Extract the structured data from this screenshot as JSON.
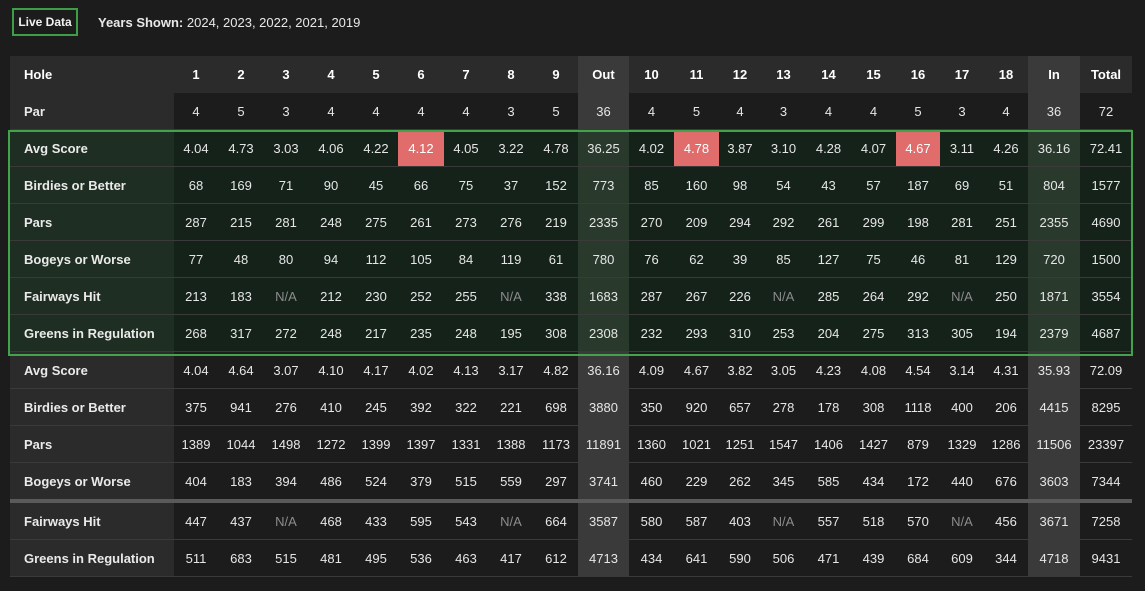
{
  "header": {
    "live_button": "Live Data",
    "years_label": "Years Shown:",
    "years_value": "2024, 2023, 2022, 2021, 2019"
  },
  "colors": {
    "live_outline": "#43a34b",
    "highlight": "#e06c6c"
  },
  "table": {
    "columns": [
      "Hole",
      "1",
      "2",
      "3",
      "4",
      "5",
      "6",
      "7",
      "8",
      "9",
      "Out",
      "10",
      "11",
      "12",
      "13",
      "14",
      "15",
      "16",
      "17",
      "18",
      "In",
      "Total"
    ],
    "rows": [
      {
        "label": "Par",
        "values": [
          "4",
          "5",
          "3",
          "4",
          "4",
          "4",
          "4",
          "3",
          "5",
          "36",
          "4",
          "5",
          "4",
          "3",
          "4",
          "4",
          "5",
          "3",
          "4",
          "36",
          "72"
        ]
      },
      {
        "label": "Avg Score",
        "values": [
          "4.04",
          "4.73",
          "3.03",
          "4.06",
          "4.22",
          "4.12",
          "4.05",
          "3.22",
          "4.78",
          "36.25",
          "4.02",
          "4.78",
          "3.87",
          "3.10",
          "4.28",
          "4.07",
          "4.67",
          "3.11",
          "4.26",
          "36.16",
          "72.41"
        ]
      },
      {
        "label": "Birdies or Better",
        "values": [
          "68",
          "169",
          "71",
          "90",
          "45",
          "66",
          "75",
          "37",
          "152",
          "773",
          "85",
          "160",
          "98",
          "54",
          "43",
          "57",
          "187",
          "69",
          "51",
          "804",
          "1577"
        ]
      },
      {
        "label": "Pars",
        "values": [
          "287",
          "215",
          "281",
          "248",
          "275",
          "261",
          "273",
          "276",
          "219",
          "2335",
          "270",
          "209",
          "294",
          "292",
          "261",
          "299",
          "198",
          "281",
          "251",
          "2355",
          "4690"
        ]
      },
      {
        "label": "Bogeys or Worse",
        "values": [
          "77",
          "48",
          "80",
          "94",
          "112",
          "105",
          "84",
          "119",
          "61",
          "780",
          "76",
          "62",
          "39",
          "85",
          "127",
          "75",
          "46",
          "81",
          "129",
          "720",
          "1500"
        ]
      },
      {
        "label": "Fairways Hit",
        "values": [
          "213",
          "183",
          "N/A",
          "212",
          "230",
          "252",
          "255",
          "N/A",
          "338",
          "1683",
          "287",
          "267",
          "226",
          "N/A",
          "285",
          "264",
          "292",
          "N/A",
          "250",
          "1871",
          "3554"
        ]
      },
      {
        "label": "Greens in Regulation",
        "values": [
          "268",
          "317",
          "272",
          "248",
          "217",
          "235",
          "248",
          "195",
          "308",
          "2308",
          "232",
          "293",
          "310",
          "253",
          "204",
          "275",
          "313",
          "305",
          "194",
          "2379",
          "4687"
        ]
      },
      {
        "label": "Avg Score",
        "values": [
          "4.04",
          "4.64",
          "3.07",
          "4.10",
          "4.17",
          "4.02",
          "4.13",
          "3.17",
          "4.82",
          "36.16",
          "4.09",
          "4.67",
          "3.82",
          "3.05",
          "4.23",
          "4.08",
          "4.54",
          "3.14",
          "4.31",
          "35.93",
          "72.09"
        ]
      },
      {
        "label": "Birdies or Better",
        "values": [
          "375",
          "941",
          "276",
          "410",
          "245",
          "392",
          "322",
          "221",
          "698",
          "3880",
          "350",
          "920",
          "657",
          "278",
          "178",
          "308",
          "1118",
          "400",
          "206",
          "4415",
          "8295"
        ]
      },
      {
        "label": "Pars",
        "values": [
          "1389",
          "1044",
          "1498",
          "1272",
          "1399",
          "1397",
          "1331",
          "1388",
          "1173",
          "11891",
          "1360",
          "1021",
          "1251",
          "1547",
          "1406",
          "1427",
          "879",
          "1329",
          "1286",
          "11506",
          "23397"
        ]
      },
      {
        "label": "Bogeys or Worse",
        "values": [
          "404",
          "183",
          "394",
          "486",
          "524",
          "379",
          "515",
          "559",
          "297",
          "3741",
          "460",
          "229",
          "262",
          "345",
          "585",
          "434",
          "172",
          "440",
          "676",
          "3603",
          "7344"
        ]
      },
      {
        "label": "Fairways Hit",
        "values": [
          "447",
          "437",
          "N/A",
          "468",
          "433",
          "595",
          "543",
          "N/A",
          "664",
          "3587",
          "580",
          "587",
          "403",
          "N/A",
          "557",
          "518",
          "570",
          "N/A",
          "456",
          "3671",
          "7258"
        ]
      },
      {
        "label": "Greens in Regulation",
        "values": [
          "511",
          "683",
          "515",
          "481",
          "495",
          "536",
          "463",
          "417",
          "612",
          "4713",
          "434",
          "641",
          "590",
          "506",
          "471",
          "439",
          "684",
          "609",
          "344",
          "4718",
          "9431"
        ]
      }
    ]
  }
}
